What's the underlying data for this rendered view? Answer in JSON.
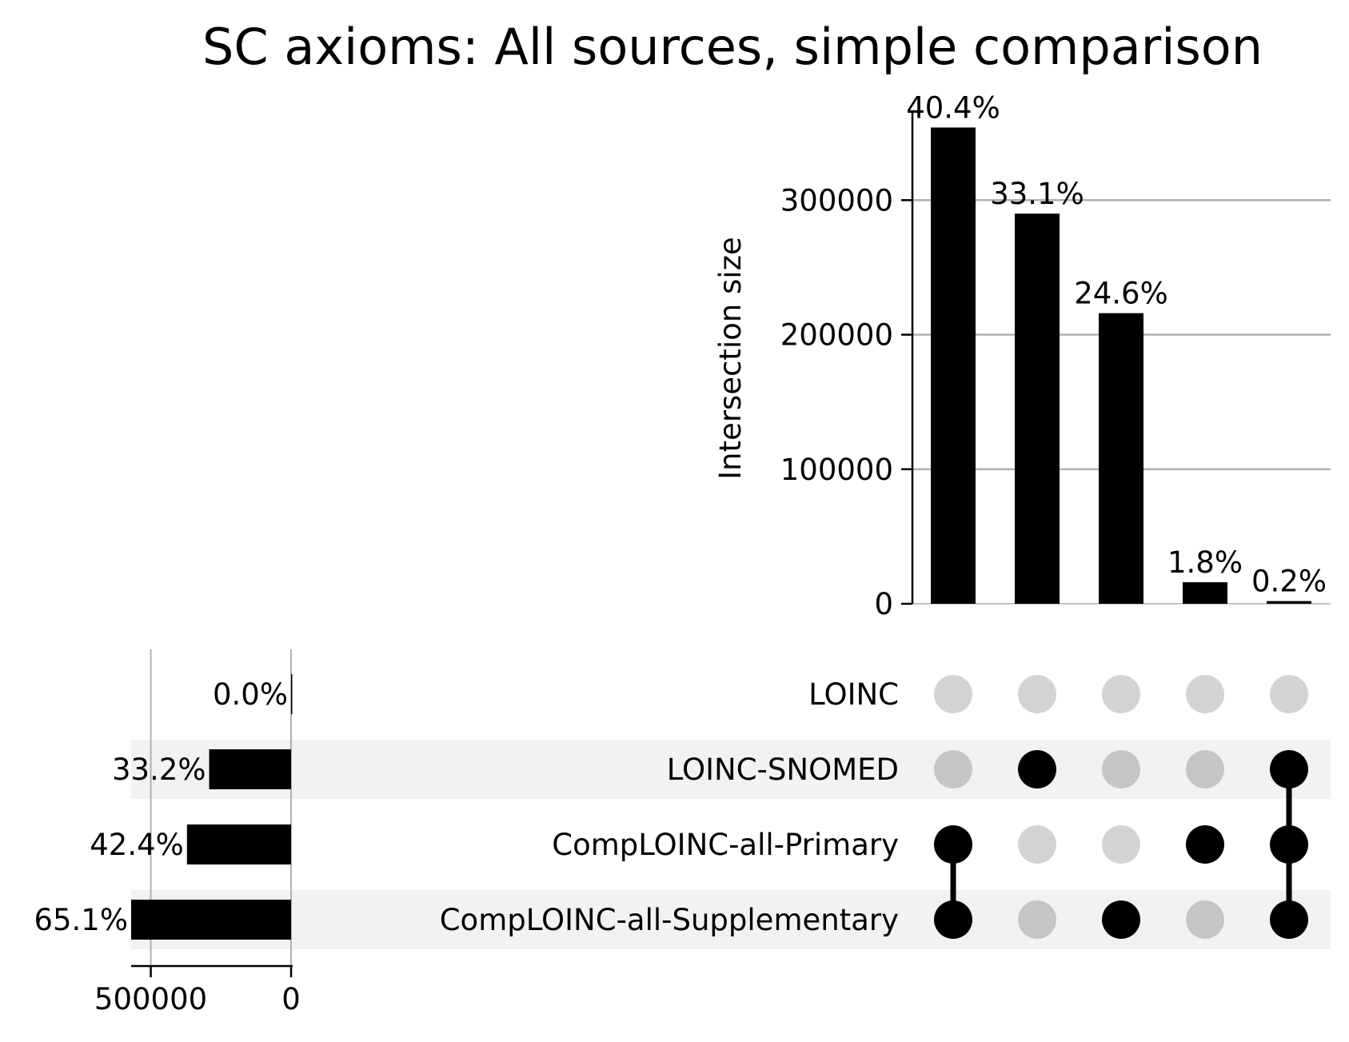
{
  "chart_data": {
    "type": "upset",
    "title": "SC axioms: All sources, simple comparison",
    "sets": [
      "LOINC",
      "LOINC-SNOMED",
      "CompLOINC-all-Primary",
      "CompLOINC-all-Supplementary"
    ],
    "intersections": [
      {
        "members": [
          "CompLOINC-all-Primary",
          "CompLOINC-all-Supplementary"
        ],
        "value": 354000,
        "label": "40.4%"
      },
      {
        "members": [
          "LOINC-SNOMED"
        ],
        "value": 290000,
        "label": "33.1%"
      },
      {
        "members": [
          "CompLOINC-all-Supplementary"
        ],
        "value": 216000,
        "label": "24.6%"
      },
      {
        "members": [
          "CompLOINC-all-Primary"
        ],
        "value": 16000,
        "label": "1.8%"
      },
      {
        "members": [
          "LOINC-SNOMED",
          "CompLOINC-all-Primary",
          "CompLOINC-all-Supplementary"
        ],
        "value": 2000,
        "label": "0.2%"
      }
    ],
    "intersection_axis": {
      "label": "Intersection size",
      "ticks": [
        0,
        100000,
        200000,
        300000
      ],
      "tick_labels": [
        "0",
        "100000",
        "200000",
        "300000"
      ],
      "range": [
        0,
        362000
      ],
      "grid": true
    },
    "set_sizes": [
      {
        "set": "LOINC",
        "value": 0,
        "label": "0.0%"
      },
      {
        "set": "LOINC-SNOMED",
        "value": 292000,
        "label": "33.2%"
      },
      {
        "set": "CompLOINC-all-Primary",
        "value": 371000,
        "label": "42.4%"
      },
      {
        "set": "CompLOINC-all-Supplementary",
        "value": 570000,
        "label": "65.1%"
      }
    ],
    "set_size_axis": {
      "ticks": [
        500000,
        0
      ],
      "tick_labels": [
        "500000",
        "0"
      ],
      "range": [
        0,
        570000
      ],
      "reversed": true,
      "grid": true
    },
    "colors": {
      "bar": "#000000",
      "dot_active": "#000000",
      "dot_inactive": "#d3d3d3",
      "dot_inactive_shaded_row": "#c5c5c5",
      "row_shade": "#f2f2f2",
      "grid": "#b0b0b0"
    }
  }
}
